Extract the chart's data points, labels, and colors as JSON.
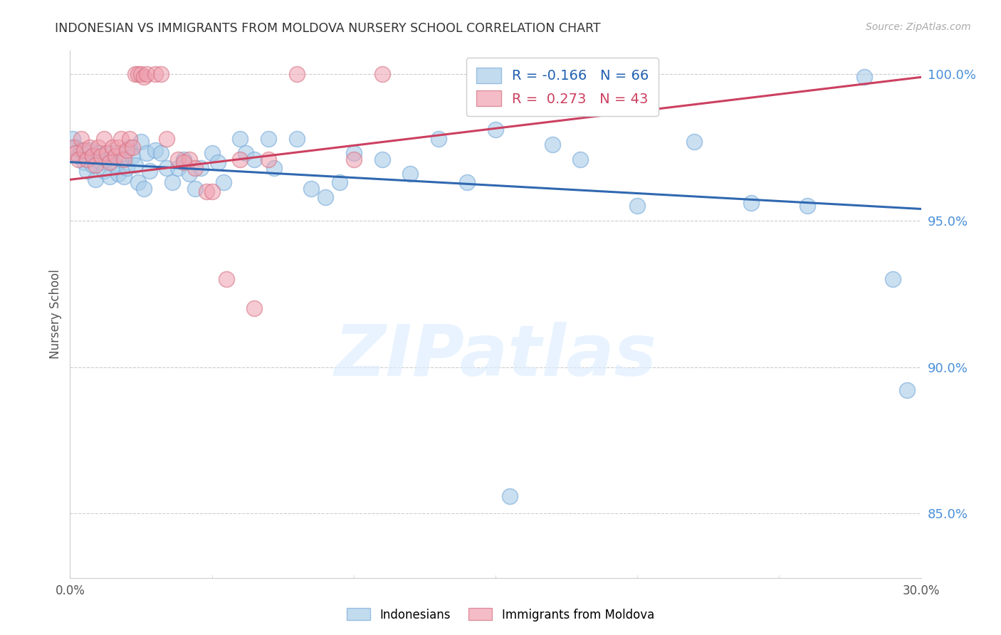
{
  "title": "INDONESIAN VS IMMIGRANTS FROM MOLDOVA NURSERY SCHOOL CORRELATION CHART",
  "source": "Source: ZipAtlas.com",
  "ylabel": "Nursery School",
  "watermark": "ZIPatlas",
  "legend_r": [
    {
      "label": "R = -0.166   N = 66",
      "color": "#7ab8e8"
    },
    {
      "label": "R =  0.273   N = 43",
      "color": "#e87a8a"
    }
  ],
  "legend_labels": [
    "Indonesians",
    "Immigrants from Moldova"
  ],
  "xlim": [
    0.0,
    0.3
  ],
  "ylim": [
    0.828,
    1.008
  ],
  "yticks": [
    0.85,
    0.9,
    0.95,
    1.0
  ],
  "ytick_labels": [
    "85.0%",
    "90.0%",
    "95.0%",
    "100.0%"
  ],
  "xticks": [
    0.0,
    0.05,
    0.1,
    0.15,
    0.2,
    0.25,
    0.3
  ],
  "xtick_labels": [
    "0.0%",
    "",
    "",
    "",
    "",
    "",
    "30.0%"
  ],
  "blue_color": "#a8cce8",
  "pink_color": "#f0a0b0",
  "blue_scatter": [
    [
      0.001,
      0.978
    ],
    [
      0.002,
      0.975
    ],
    [
      0.003,
      0.972
    ],
    [
      0.004,
      0.974
    ],
    [
      0.005,
      0.97
    ],
    [
      0.006,
      0.967
    ],
    [
      0.007,
      0.974
    ],
    [
      0.008,
      0.969
    ],
    [
      0.009,
      0.964
    ],
    [
      0.01,
      0.973
    ],
    [
      0.011,
      0.97
    ],
    [
      0.012,
      0.967
    ],
    [
      0.013,
      0.971
    ],
    [
      0.014,
      0.965
    ],
    [
      0.015,
      0.973
    ],
    [
      0.016,
      0.969
    ],
    [
      0.017,
      0.966
    ],
    [
      0.018,
      0.971
    ],
    [
      0.019,
      0.965
    ],
    [
      0.02,
      0.968
    ],
    [
      0.021,
      0.975
    ],
    [
      0.022,
      0.972
    ],
    [
      0.023,
      0.969
    ],
    [
      0.024,
      0.963
    ],
    [
      0.025,
      0.977
    ],
    [
      0.026,
      0.961
    ],
    [
      0.027,
      0.973
    ],
    [
      0.028,
      0.967
    ],
    [
      0.03,
      0.974
    ],
    [
      0.032,
      0.973
    ],
    [
      0.034,
      0.968
    ],
    [
      0.036,
      0.963
    ],
    [
      0.038,
      0.968
    ],
    [
      0.04,
      0.971
    ],
    [
      0.042,
      0.966
    ],
    [
      0.044,
      0.961
    ],
    [
      0.046,
      0.968
    ],
    [
      0.05,
      0.973
    ],
    [
      0.052,
      0.97
    ],
    [
      0.054,
      0.963
    ],
    [
      0.06,
      0.978
    ],
    [
      0.062,
      0.973
    ],
    [
      0.065,
      0.971
    ],
    [
      0.07,
      0.978
    ],
    [
      0.072,
      0.968
    ],
    [
      0.08,
      0.978
    ],
    [
      0.085,
      0.961
    ],
    [
      0.09,
      0.958
    ],
    [
      0.095,
      0.963
    ],
    [
      0.1,
      0.973
    ],
    [
      0.11,
      0.971
    ],
    [
      0.12,
      0.966
    ],
    [
      0.13,
      0.978
    ],
    [
      0.14,
      0.963
    ],
    [
      0.15,
      0.981
    ],
    [
      0.16,
      1.0
    ],
    [
      0.17,
      0.976
    ],
    [
      0.18,
      0.971
    ],
    [
      0.2,
      0.955
    ],
    [
      0.22,
      0.977
    ],
    [
      0.24,
      0.956
    ],
    [
      0.26,
      0.955
    ],
    [
      0.28,
      0.999
    ],
    [
      0.29,
      0.93
    ],
    [
      0.295,
      0.892
    ],
    [
      0.155,
      0.856
    ]
  ],
  "pink_scatter": [
    [
      0.001,
      0.975
    ],
    [
      0.002,
      0.973
    ],
    [
      0.003,
      0.971
    ],
    [
      0.004,
      0.978
    ],
    [
      0.005,
      0.974
    ],
    [
      0.006,
      0.971
    ],
    [
      0.007,
      0.975
    ],
    [
      0.008,
      0.972
    ],
    [
      0.009,
      0.969
    ],
    [
      0.01,
      0.975
    ],
    [
      0.011,
      0.972
    ],
    [
      0.012,
      0.978
    ],
    [
      0.013,
      0.973
    ],
    [
      0.014,
      0.97
    ],
    [
      0.015,
      0.975
    ],
    [
      0.016,
      0.972
    ],
    [
      0.017,
      0.975
    ],
    [
      0.018,
      0.978
    ],
    [
      0.019,
      0.971
    ],
    [
      0.02,
      0.974
    ],
    [
      0.021,
      0.978
    ],
    [
      0.022,
      0.975
    ],
    [
      0.023,
      1.0
    ],
    [
      0.024,
      1.0
    ],
    [
      0.025,
      1.0
    ],
    [
      0.026,
      0.999
    ],
    [
      0.027,
      1.0
    ],
    [
      0.03,
      1.0
    ],
    [
      0.032,
      1.0
    ],
    [
      0.034,
      0.978
    ],
    [
      0.038,
      0.971
    ],
    [
      0.042,
      0.971
    ],
    [
      0.044,
      0.968
    ],
    [
      0.048,
      0.96
    ],
    [
      0.055,
      0.93
    ],
    [
      0.065,
      0.92
    ],
    [
      0.04,
      0.97
    ],
    [
      0.06,
      0.971
    ],
    [
      0.07,
      0.971
    ],
    [
      0.08,
      1.0
    ],
    [
      0.1,
      0.971
    ],
    [
      0.11,
      1.0
    ],
    [
      0.05,
      0.96
    ]
  ],
  "blue_line_x": [
    0.0,
    0.3
  ],
  "blue_line_y": [
    0.97,
    0.954
  ],
  "pink_line_x": [
    0.0,
    0.3
  ],
  "pink_line_y": [
    0.964,
    0.999
  ]
}
